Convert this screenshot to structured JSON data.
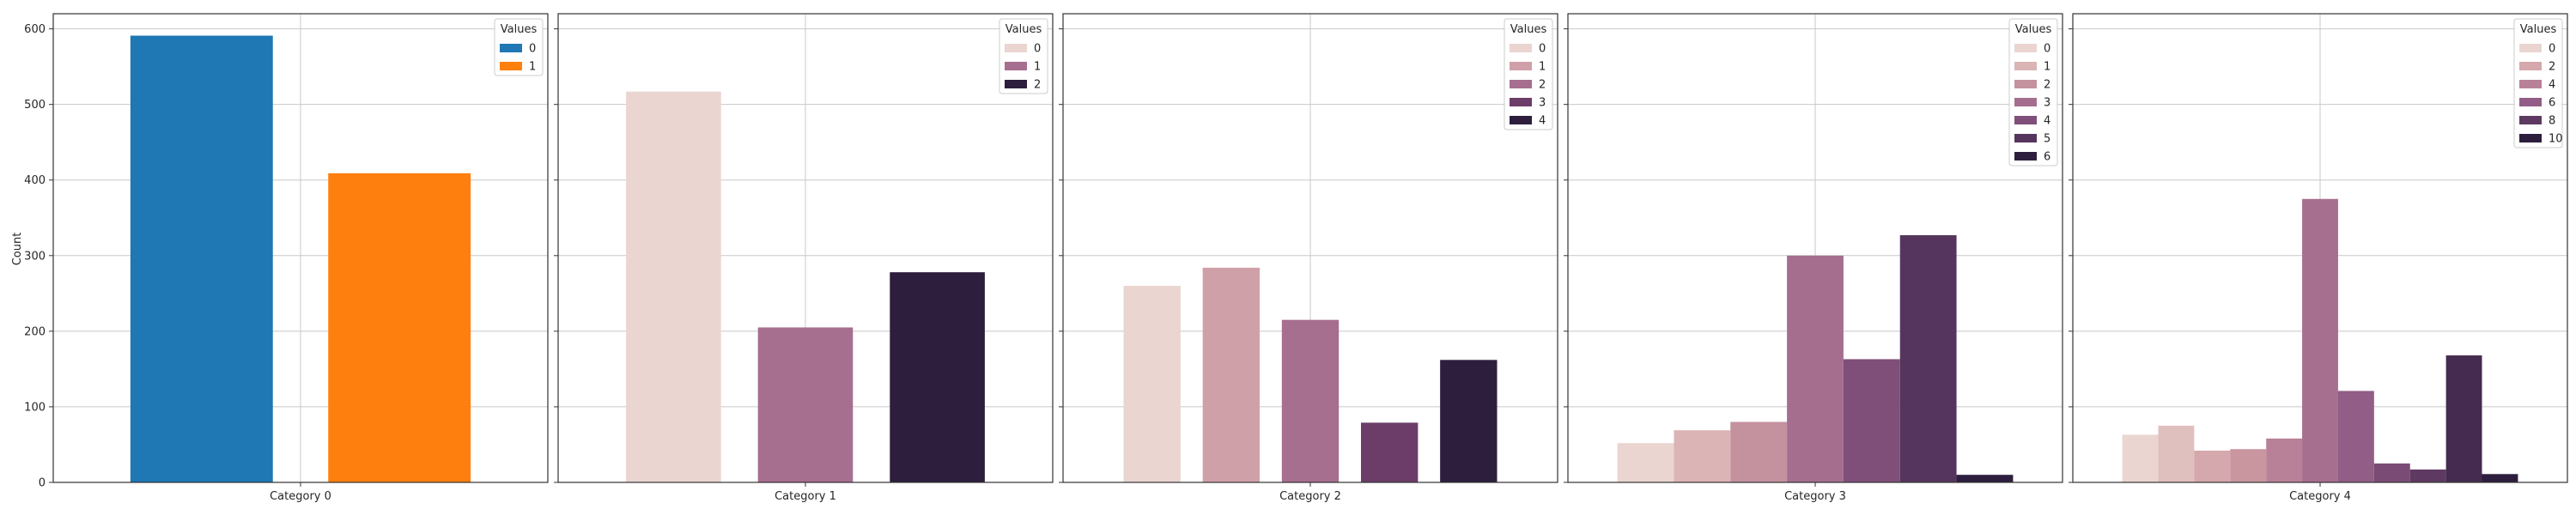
{
  "chart_data": {
    "type": "bar",
    "ylabel": "Count",
    "ylim": [
      0,
      620
    ],
    "yticks": [
      0,
      100,
      200,
      300,
      400,
      500,
      600
    ],
    "grid": true,
    "legend_title": "Values",
    "legend_placement": "top-right",
    "panels": [
      {
        "xlabel": "Category 0",
        "legend": [
          {
            "label": "0",
            "color": "#1f77b4"
          },
          {
            "label": "1",
            "color": "#ff7f0e"
          }
        ],
        "bars": [
          {
            "hue": "0",
            "value": 591,
            "color": "#1f77b4"
          },
          {
            "hue": "1",
            "value": 409,
            "color": "#ff7f0e"
          }
        ]
      },
      {
        "xlabel": "Category 1",
        "legend": [
          {
            "label": "0",
            "color": "#ead5d1"
          },
          {
            "label": "1",
            "color": "#a66e8f"
          },
          {
            "label": "2",
            "color": "#2d1e3e"
          }
        ],
        "bars": [
          {
            "hue": "0",
            "value": 517,
            "color": "#ead5d1"
          },
          {
            "hue": "1",
            "value": 205,
            "color": "#a66e8f"
          },
          {
            "hue": "2",
            "value": 278,
            "color": "#2d1e3e"
          }
        ]
      },
      {
        "xlabel": "Category 2",
        "legend": [
          {
            "label": "0",
            "color": "#ead5d1"
          },
          {
            "label": "1",
            "color": "#d0a0a8"
          },
          {
            "label": "2",
            "color": "#a66e8f"
          },
          {
            "label": "3",
            "color": "#6b3d68"
          },
          {
            "label": "4",
            "color": "#2d1e3e"
          }
        ],
        "bars": [
          {
            "hue": "0",
            "value": 260,
            "color": "#ead5d1"
          },
          {
            "hue": "1",
            "value": 284,
            "color": "#d0a0a8"
          },
          {
            "hue": "2",
            "value": 215,
            "color": "#a66e8f"
          },
          {
            "hue": "3",
            "value": 79,
            "color": "#6b3d68"
          },
          {
            "hue": "4",
            "value": 162,
            "color": "#2d1e3e"
          }
        ]
      },
      {
        "xlabel": "Category 3",
        "legend": [
          {
            "label": "0",
            "color": "#ead5d1"
          },
          {
            "label": "1",
            "color": "#dbb4b6"
          },
          {
            "label": "2",
            "color": "#c4919f"
          },
          {
            "label": "3",
            "color": "#a56e8f"
          },
          {
            "label": "4",
            "color": "#7f4f7a"
          },
          {
            "label": "5",
            "color": "#55355e"
          },
          {
            "label": "6",
            "color": "#2d1e3e"
          }
        ],
        "bars": [
          {
            "hue": "0",
            "value": 52,
            "color": "#ead5d1"
          },
          {
            "hue": "1",
            "value": 69,
            "color": "#dbb4b6"
          },
          {
            "hue": "2",
            "value": 80,
            "color": "#c4919f"
          },
          {
            "hue": "3",
            "value": 300,
            "color": "#a56e8f"
          },
          {
            "hue": "4",
            "value": 163,
            "color": "#7f4f7a"
          },
          {
            "hue": "5",
            "value": 327,
            "color": "#55355e"
          },
          {
            "hue": "6",
            "value": 10,
            "color": "#2d1e3e"
          }
        ]
      },
      {
        "xlabel": "Category 4",
        "legend": [
          {
            "label": "0",
            "color": "#ead5d1"
          },
          {
            "label": "2",
            "color": "#d4a8ac"
          },
          {
            "label": "4",
            "color": "#b98197"
          },
          {
            "label": "6",
            "color": "#925d86"
          },
          {
            "label": "8",
            "color": "#5e3a62"
          },
          {
            "label": "10",
            "color": "#2d1e3e"
          }
        ],
        "bars": [
          {
            "hue": "0",
            "value": 63,
            "color": "#ead5d1"
          },
          {
            "hue": "1",
            "value": 75,
            "color": "#e0bfbf"
          },
          {
            "hue": "2",
            "value": 42,
            "color": "#d4a8ac"
          },
          {
            "hue": "3",
            "value": 44,
            "color": "#c9959f"
          },
          {
            "hue": "4",
            "value": 58,
            "color": "#b98197"
          },
          {
            "hue": "5",
            "value": 375,
            "color": "#a66e8f"
          },
          {
            "hue": "6",
            "value": 121,
            "color": "#925d86"
          },
          {
            "hue": "7",
            "value": 25,
            "color": "#7a4c75"
          },
          {
            "hue": "8",
            "value": 17,
            "color": "#5e3a62"
          },
          {
            "hue": "9",
            "value": 168,
            "color": "#452b4f"
          },
          {
            "hue": "10",
            "value": 11,
            "color": "#2d1e3e"
          }
        ]
      }
    ]
  }
}
